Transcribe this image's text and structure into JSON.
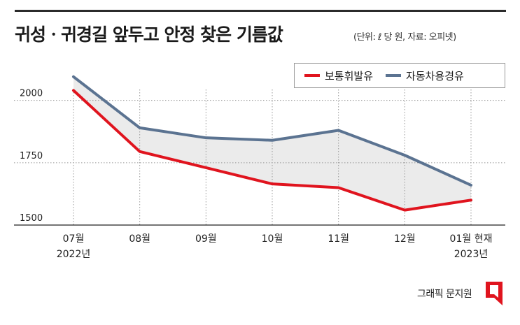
{
  "header": {
    "title": "귀성ㆍ귀경길 앞두고 안정 찾은 기름값",
    "unit_note": "(단위: ℓ 당 원, 자료: 오피넷)"
  },
  "footer": {
    "credit": "그래픽 문지원"
  },
  "colors": {
    "gasoline": "#e0141e",
    "diesel": "#5b7391",
    "fill": "#ebebeb"
  },
  "chart_data": {
    "type": "line",
    "categories": [
      "07월 2022년",
      "08월",
      "09월",
      "10월",
      "11월",
      "12월",
      "01월 현재 2023년"
    ],
    "category_labels": [
      {
        "line1": "07월",
        "line2": "2022년"
      },
      {
        "line1": "08월",
        "line2": ""
      },
      {
        "line1": "09월",
        "line2": ""
      },
      {
        "line1": "10월",
        "line2": ""
      },
      {
        "line1": "11월",
        "line2": ""
      },
      {
        "line1": "12월",
        "line2": ""
      },
      {
        "line1": "01월 현재",
        "line2": "2023년"
      }
    ],
    "series": [
      {
        "name": "보통휘발유",
        "values": [
          2040,
          1795,
          1730,
          1665,
          1650,
          1560,
          1600
        ]
      },
      {
        "name": "자동차용경유",
        "values": [
          2095,
          1890,
          1850,
          1840,
          1880,
          1780,
          1660
        ]
      }
    ],
    "yticks": [
      "2000",
      "1750",
      "1500"
    ],
    "ytick_values": [
      2000,
      1750,
      1500
    ],
    "ylim": [
      1500,
      2100
    ],
    "grid": true,
    "legend_position": "top-right"
  }
}
